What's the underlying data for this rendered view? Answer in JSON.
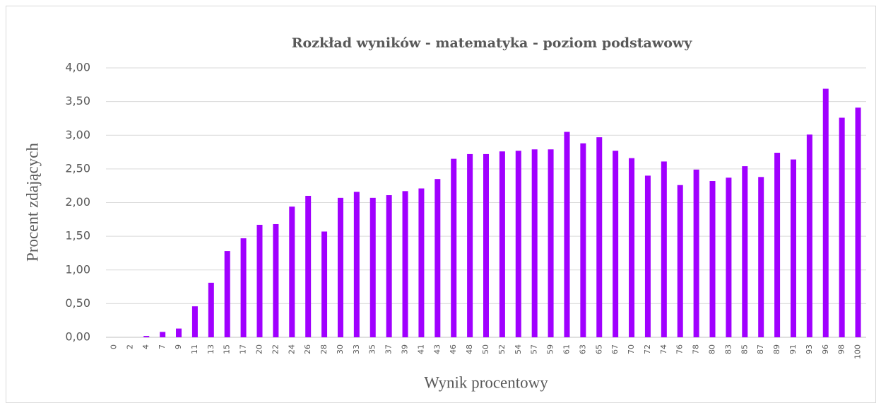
{
  "chart_data": {
    "type": "bar",
    "title": "Rozkład wyników - matematyka - poziom podstawowy",
    "x_label": "Wynik  procentowy",
    "y_label": "Procent zdających",
    "categories": [
      "0",
      "2",
      "4",
      "7",
      "9",
      "11",
      "13",
      "15",
      "17",
      "20",
      "22",
      "24",
      "26",
      "28",
      "30",
      "33",
      "35",
      "37",
      "39",
      "41",
      "43",
      "46",
      "48",
      "50",
      "52",
      "54",
      "57",
      "59",
      "61",
      "63",
      "65",
      "67",
      "70",
      "72",
      "74",
      "76",
      "78",
      "80",
      "83",
      "85",
      "87",
      "89",
      "91",
      "93",
      "96",
      "98",
      "100"
    ],
    "values": [
      0,
      0,
      0.02,
      0.08,
      0.13,
      0.46,
      0.81,
      1.28,
      1.47,
      1.67,
      1.68,
      1.94,
      2.1,
      1.57,
      2.07,
      2.16,
      2.07,
      2.11,
      2.17,
      2.21,
      2.35,
      2.65,
      2.72,
      2.72,
      2.76,
      2.77,
      2.79,
      2.79,
      3.05,
      2.88,
      2.97,
      2.77,
      2.66,
      2.4,
      2.61,
      2.26,
      2.49,
      2.32,
      2.37,
      2.54,
      2.38,
      2.74,
      2.64,
      3.01,
      3.69,
      3.26,
      3.41
    ],
    "color": "#a000ff",
    "ylim": [
      0,
      4
    ],
    "yticks": [
      {
        "value": 0,
        "label": "0,00"
      },
      {
        "value": 0.5,
        "label": "0,50"
      },
      {
        "value": 1,
        "label": "1,00"
      },
      {
        "value": 1.5,
        "label": "1,50"
      },
      {
        "value": 2,
        "label": "2,00"
      },
      {
        "value": 2.5,
        "label": "2,50"
      },
      {
        "value": 3,
        "label": "3,00"
      },
      {
        "value": 3.5,
        "label": "3,50"
      },
      {
        "value": 4,
        "label": "4,00"
      }
    ],
    "grid": true
  }
}
